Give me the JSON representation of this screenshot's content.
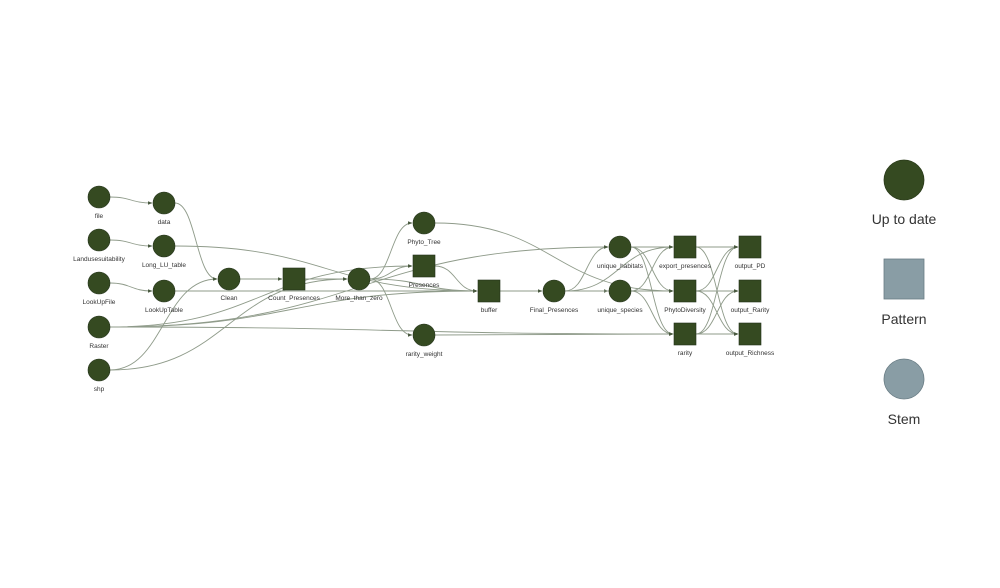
{
  "colors": {
    "up_to_date": "#354a21",
    "pattern": "#899da5",
    "stem": "#899da5",
    "edge": "#8f9b8a"
  },
  "legend": {
    "up_to_date": "Up to date",
    "pattern": "Pattern",
    "stem": "Stem"
  },
  "nodes": [
    {
      "id": "file",
      "label": "file",
      "shape": "circle",
      "status": "up_to_date"
    },
    {
      "id": "Landusesuitability",
      "label": "Landusesuitability",
      "shape": "circle",
      "status": "up_to_date"
    },
    {
      "id": "LookUpFile",
      "label": "LookUpFile",
      "shape": "circle",
      "status": "up_to_date"
    },
    {
      "id": "Raster",
      "label": "Raster",
      "shape": "circle",
      "status": "up_to_date"
    },
    {
      "id": "shp",
      "label": "shp",
      "shape": "circle",
      "status": "up_to_date"
    },
    {
      "id": "data",
      "label": "data",
      "shape": "circle",
      "status": "up_to_date"
    },
    {
      "id": "Long_LU_table",
      "label": "Long_LU_table",
      "shape": "circle",
      "status": "up_to_date"
    },
    {
      "id": "LookUpTable",
      "label": "LookUpTable",
      "shape": "circle",
      "status": "up_to_date"
    },
    {
      "id": "Clean",
      "label": "Clean",
      "shape": "circle",
      "status": "up_to_date"
    },
    {
      "id": "Count_Presences",
      "label": "Count_Presences",
      "shape": "square",
      "status": "up_to_date"
    },
    {
      "id": "More_than_zero",
      "label": "More_than_zero",
      "shape": "circle",
      "status": "up_to_date"
    },
    {
      "id": "Phyto_Tree",
      "label": "Phyto_Tree",
      "shape": "circle",
      "status": "up_to_date"
    },
    {
      "id": "Presences",
      "label": "Presences",
      "shape": "square",
      "status": "up_to_date"
    },
    {
      "id": "rarity_weight",
      "label": "rarity_weight",
      "shape": "circle",
      "status": "up_to_date"
    },
    {
      "id": "buffer",
      "label": "buffer",
      "shape": "square",
      "status": "up_to_date"
    },
    {
      "id": "Final_Presences",
      "label": "Final_Presences",
      "shape": "circle",
      "status": "up_to_date"
    },
    {
      "id": "unique_habitats",
      "label": "unique_habitats",
      "shape": "circle",
      "status": "up_to_date"
    },
    {
      "id": "unique_species",
      "label": "unique_species",
      "shape": "circle",
      "status": "up_to_date"
    },
    {
      "id": "export_presences",
      "label": "export_presences",
      "shape": "square",
      "status": "up_to_date"
    },
    {
      "id": "PhytoDiversity",
      "label": "PhytoDiversity",
      "shape": "square",
      "status": "up_to_date"
    },
    {
      "id": "rarity",
      "label": "rarity",
      "shape": "square",
      "status": "up_to_date"
    },
    {
      "id": "output_PD",
      "label": "output_PD",
      "shape": "square",
      "status": "up_to_date"
    },
    {
      "id": "output_Rarity",
      "label": "output_Rarity",
      "shape": "square",
      "status": "up_to_date"
    },
    {
      "id": "output_Richness",
      "label": "output_Richness",
      "shape": "square",
      "status": "up_to_date"
    }
  ],
  "edges": [
    [
      "file",
      "data"
    ],
    [
      "Landusesuitability",
      "Long_LU_table"
    ],
    [
      "LookUpFile",
      "LookUpTable"
    ],
    [
      "data",
      "Clean"
    ],
    [
      "Clean",
      "Count_Presences"
    ],
    [
      "Count_Presences",
      "More_than_zero"
    ],
    [
      "Long_LU_table",
      "buffer"
    ],
    [
      "LookUpTable",
      "buffer"
    ],
    [
      "shp",
      "Clean"
    ],
    [
      "shp",
      "More_than_zero"
    ],
    [
      "Raster",
      "Presences"
    ],
    [
      "Raster",
      "buffer"
    ],
    [
      "Raster",
      "rarity"
    ],
    [
      "Raster",
      "unique_habitats"
    ],
    [
      "More_than_zero",
      "Phyto_Tree"
    ],
    [
      "More_than_zero",
      "Presences"
    ],
    [
      "More_than_zero",
      "rarity_weight"
    ],
    [
      "More_than_zero",
      "buffer"
    ],
    [
      "Presences",
      "buffer"
    ],
    [
      "buffer",
      "Final_Presences"
    ],
    [
      "Phyto_Tree",
      "PhytoDiversity"
    ],
    [
      "rarity_weight",
      "rarity"
    ],
    [
      "Final_Presences",
      "unique_habitats"
    ],
    [
      "Final_Presences",
      "unique_species"
    ],
    [
      "Final_Presences",
      "export_presences"
    ],
    [
      "Final_Presences",
      "PhytoDiversity"
    ],
    [
      "unique_habitats",
      "export_presences"
    ],
    [
      "unique_habitats",
      "PhytoDiversity"
    ],
    [
      "unique_habitats",
      "rarity"
    ],
    [
      "unique_species",
      "export_presences"
    ],
    [
      "unique_species",
      "PhytoDiversity"
    ],
    [
      "unique_species",
      "rarity"
    ],
    [
      "PhytoDiversity",
      "output_PD"
    ],
    [
      "PhytoDiversity",
      "output_Rarity"
    ],
    [
      "PhytoDiversity",
      "output_Richness"
    ],
    [
      "rarity",
      "output_PD"
    ],
    [
      "rarity",
      "output_Rarity"
    ],
    [
      "rarity",
      "output_Richness"
    ],
    [
      "export_presences",
      "output_PD"
    ],
    [
      "export_presences",
      "output_Richness"
    ]
  ]
}
